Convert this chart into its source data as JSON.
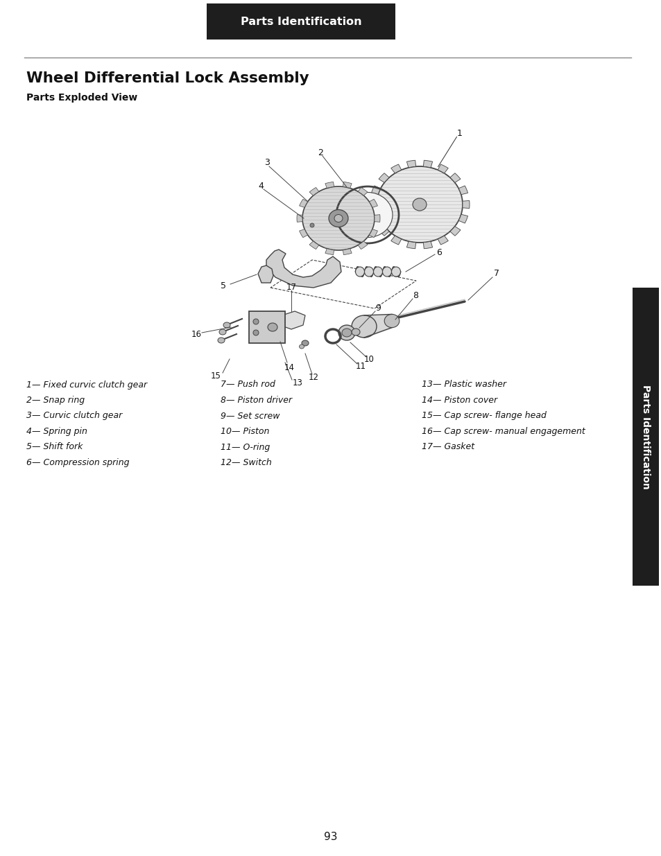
{
  "page_header": "Parts Identification",
  "header_bg": "#1e1e1e",
  "header_text_color": "#ffffff",
  "title": "Wheel Differential Lock Assembly",
  "subtitle": "Parts Exploded View",
  "side_tab_text": "Parts Identification",
  "side_tab_bg": "#1e1e1e",
  "page_number": "93",
  "bg_color": "#ffffff",
  "line_color": "#444444",
  "fill_light": "#d8d8d8",
  "fill_mid": "#aaaaaa",
  "fill_dark": "#777777",
  "legend_col1": [
    "1— Fixed curvic clutch gear",
    "2— Snap ring",
    "3— Curvic clutch gear",
    "4— Spring pin",
    "5— Shift fork",
    "6— Compression spring"
  ],
  "legend_col2": [
    "7— Push rod",
    "8— Piston driver",
    "9— Set screw",
    "10— Piston",
    "11— O-ring",
    "12— Switch"
  ],
  "legend_col3": [
    "13— Plastic washer",
    "14— Piston cover",
    "15— Cap screw- flange head",
    "16— Cap screw- manual engagement",
    "17— Gasket"
  ]
}
